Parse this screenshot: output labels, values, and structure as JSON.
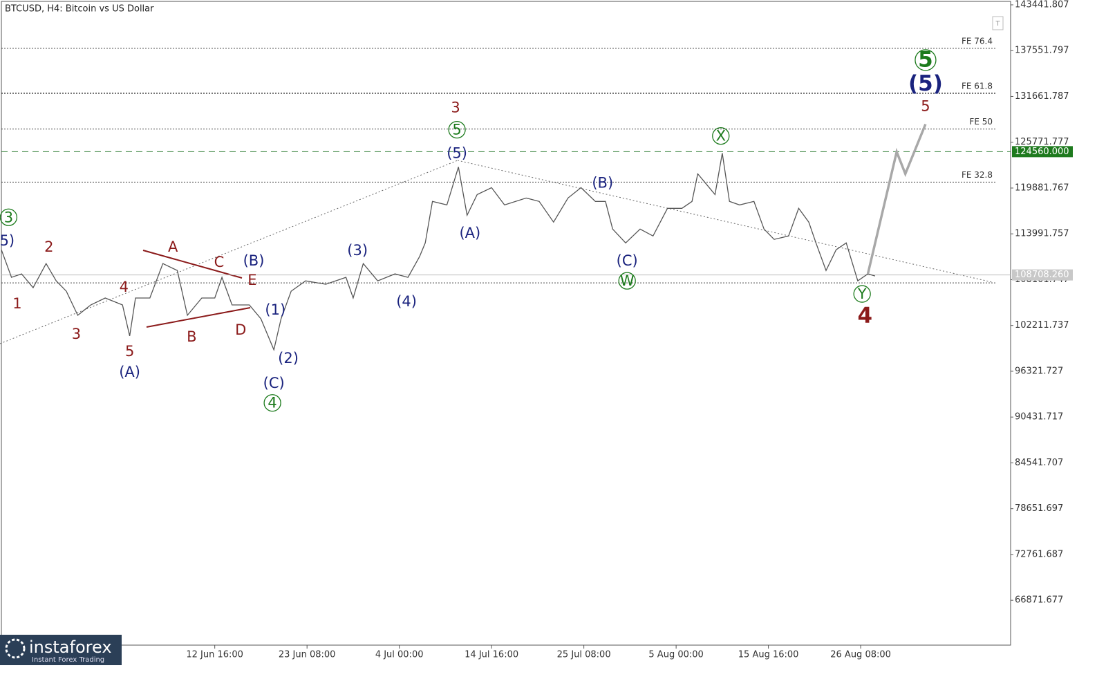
{
  "chart_data": {
    "type": "line",
    "title": "BTCUSD, H4:  Bitcoin vs US Dollar",
    "color": "#555555",
    "forecast_color": "#a8a8a8",
    "x": [
      0,
      7,
      14,
      22,
      31,
      38,
      45,
      53,
      62,
      72,
      84,
      89,
      93,
      103,
      112,
      122,
      129,
      139,
      148,
      153,
      160,
      172,
      180,
      189,
      194,
      201,
      211,
      225,
      239,
      244,
      251,
      261,
      273,
      282,
      290,
      294,
      299,
      309,
      317,
      323,
      330,
      340,
      349,
      364,
      373,
      383,
      393,
      402,
      412,
      419,
      424,
      433,
      443,
      452,
      462,
      472,
      479,
      483,
      491,
      495,
      500,
      505,
      512,
      522,
      529,
      536,
      546,
      553,
      560,
      565,
      572,
      579,
      586,
      594,
      601,
      606
    ],
    "values": [
      111950,
      108400,
      108840,
      107070,
      110170,
      107950,
      106620,
      103520,
      104850,
      105740,
      104850,
      100860,
      105740,
      105740,
      110170,
      109280,
      103520,
      105740,
      105740,
      108400,
      104850,
      104850,
      103070,
      99080,
      103070,
      106620,
      107950,
      107510,
      108400,
      105740,
      110170,
      107950,
      108840,
      108400,
      111060,
      112830,
      118160,
      117710,
      122590,
      116380,
      119040,
      119930,
      117710,
      118600,
      118160,
      115500,
      118600,
      119930,
      118160,
      118160,
      114610,
      112830,
      114610,
      113720,
      117270,
      117270,
      118160,
      121710,
      119930,
      119040,
      124370,
      118160,
      117710,
      118160,
      114610,
      113280,
      113720,
      117270,
      115500,
      112830,
      109280,
      111950,
      112830,
      107950,
      108840,
      108580
    ],
    "forecast": {
      "x": [
        601,
        621,
        627,
        641
      ],
      "values": [
        108840,
        124540,
        121710,
        128090
      ]
    },
    "xlim": [
      0,
      700
    ],
    "xticks": [
      {
        "value": 148,
        "label": "12 Jun 16:00"
      },
      {
        "value": 212,
        "label": "23 Jun 08:00"
      },
      {
        "value": 276,
        "label": "4 Jul 00:00"
      },
      {
        "value": 340,
        "label": "14 Jul 16:00"
      },
      {
        "value": 404,
        "label": "25 Jul 08:00"
      },
      {
        "value": 468,
        "label": "5 Aug 00:00"
      },
      {
        "value": 532,
        "label": "15 Aug 16:00"
      },
      {
        "value": 596,
        "label": "26 Aug 08:00"
      }
    ],
    "ylim": [
      61106,
      143885
    ],
    "yticks": [
      143441.807,
      137551.797,
      131661.787,
      125771.777,
      119881.767,
      113991.757,
      108101.747,
      102211.737,
      96321.727,
      90431.717,
      84541.707,
      78651.697,
      72761.687,
      66871.677
    ],
    "levels": [
      {
        "value": 137850,
        "label": "FE 76.4"
      },
      {
        "value": 132080,
        "label": "FE 61.8"
      },
      {
        "value": 127470,
        "label": "FE 50"
      },
      {
        "value": 120640,
        "label": "FE 32.8"
      }
    ],
    "target": {
      "value": 124560,
      "label": "124560.000"
    },
    "current": {
      "value": 108708.26,
      "label": "108708.260"
    },
    "support": 107690,
    "waves": [
      {
        "text": "3",
        "x": 5,
        "y": 116120,
        "color": "#1b7a1b",
        "circle": true
      },
      {
        "text": "5",
        "x": 316,
        "y": 127380,
        "color": "#1b7a1b",
        "circle": true
      },
      {
        "text": "4",
        "x": 188,
        "y": 92250,
        "color": "#1b7a1b",
        "circle": true
      },
      {
        "text": "W",
        "x": 434,
        "y": 107950,
        "color": "#1b7a1b",
        "circle": true
      },
      {
        "text": "X",
        "x": 499,
        "y": 126580,
        "color": "#1b7a1b",
        "circle": true
      },
      {
        "text": "Y",
        "x": 597,
        "y": 106270,
        "color": "#1b7a1b",
        "circle": true
      },
      {
        "text": "5",
        "x": 641,
        "y": 136340,
        "color": "#1b7a1b",
        "circle": true
      },
      {
        "text": "5)",
        "x": 4,
        "y": 113100,
        "color": "#1a237e"
      },
      {
        "text": "(A)",
        "x": 89,
        "y": 96240,
        "color": "#1a237e"
      },
      {
        "text": "(B)",
        "x": 175,
        "y": 110530,
        "color": "#1a237e"
      },
      {
        "text": "(1)",
        "x": 190,
        "y": 104230,
        "color": "#1a237e"
      },
      {
        "text": "(2)",
        "x": 199,
        "y": 98020,
        "color": "#1a237e"
      },
      {
        "text": "(C)",
        "x": 189,
        "y": 94820,
        "color": "#1a237e"
      },
      {
        "text": "(3)",
        "x": 247,
        "y": 111860,
        "color": "#1a237e"
      },
      {
        "text": "(4)",
        "x": 281,
        "y": 105290,
        "color": "#1a237e"
      },
      {
        "text": "(5)",
        "x": 316,
        "y": 124370,
        "color": "#1a237e"
      },
      {
        "text": "(A)",
        "x": 325,
        "y": 114080,
        "color": "#1a237e"
      },
      {
        "text": "(B)",
        "x": 417,
        "y": 120550,
        "color": "#1a237e"
      },
      {
        "text": "(C)",
        "x": 434,
        "y": 110530,
        "color": "#1a237e"
      },
      {
        "text": "(5)",
        "x": 641,
        "y": 133240,
        "color": "#1a237e"
      },
      {
        "text": "1",
        "x": 11,
        "y": 105030,
        "color": "#8b1a1a"
      },
      {
        "text": "2",
        "x": 33,
        "y": 112300,
        "color": "#8b1a1a"
      },
      {
        "text": "3",
        "x": 52,
        "y": 101120,
        "color": "#8b1a1a"
      },
      {
        "text": "4",
        "x": 85,
        "y": 107150,
        "color": "#8b1a1a"
      },
      {
        "text": "5",
        "x": 89,
        "y": 98900,
        "color": "#8b1a1a"
      },
      {
        "text": "A",
        "x": 119,
        "y": 112300,
        "color": "#8b1a1a"
      },
      {
        "text": "B",
        "x": 132,
        "y": 100770,
        "color": "#8b1a1a"
      },
      {
        "text": "C",
        "x": 151,
        "y": 110350,
        "color": "#8b1a1a"
      },
      {
        "text": "D",
        "x": 166,
        "y": 101650,
        "color": "#8b1a1a"
      },
      {
        "text": "E",
        "x": 174,
        "y": 108040,
        "color": "#8b1a1a"
      },
      {
        "text": "3",
        "x": 315,
        "y": 130220,
        "color": "#8b1a1a"
      },
      {
        "text": "4",
        "x": 599,
        "y": 103430,
        "color": "#8b1a1a"
      },
      {
        "text": "5",
        "x": 641,
        "y": 130400,
        "color": "#8b1a1a"
      }
    ]
  },
  "logo": {
    "name": "instaforex",
    "tagline": "Instant Forex Trading"
  }
}
